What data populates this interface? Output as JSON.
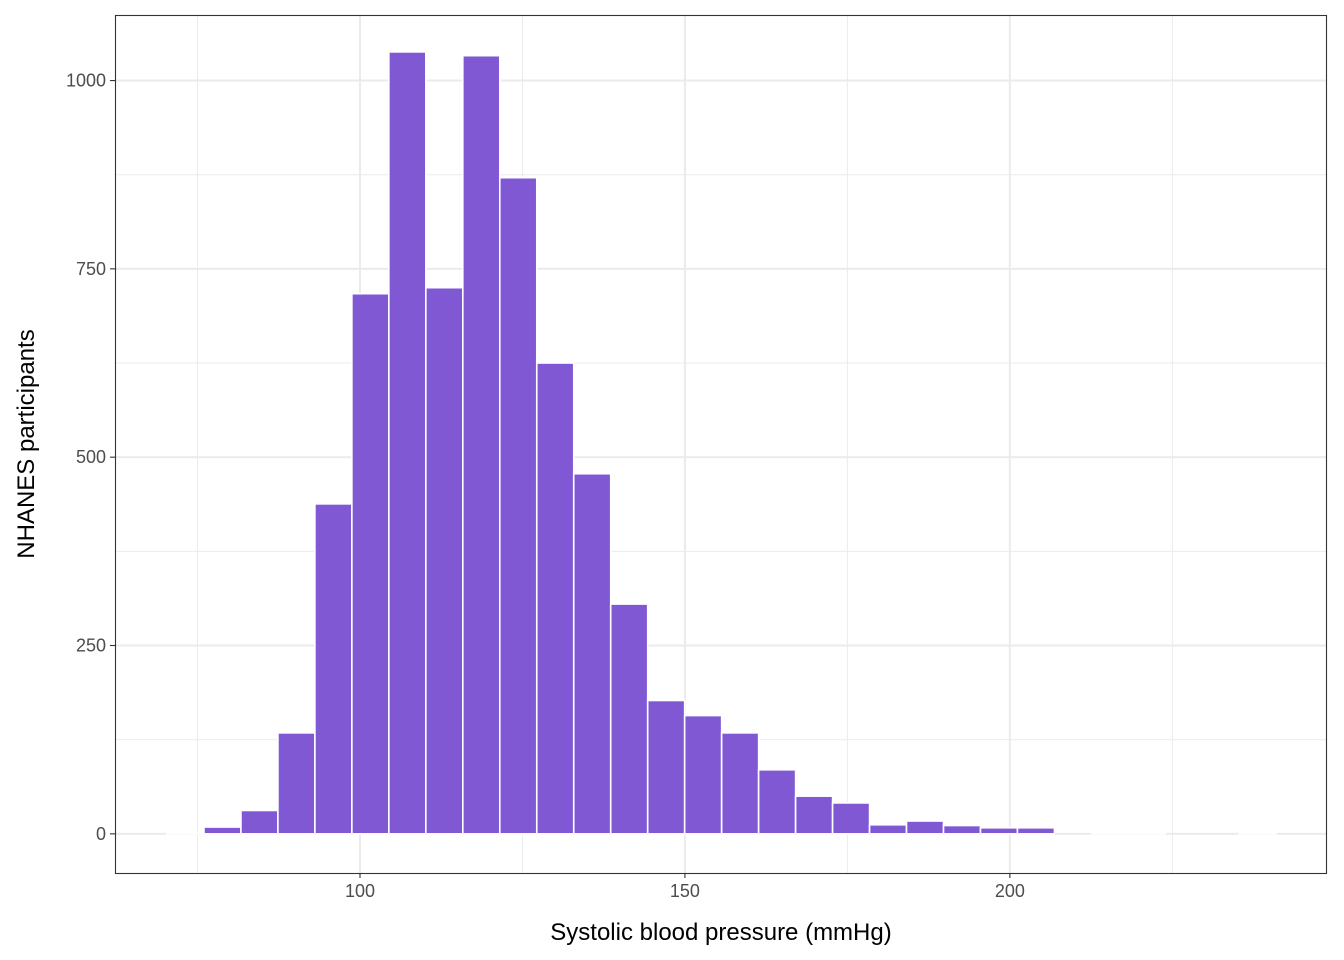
{
  "chart_data": {
    "type": "bar",
    "subtype": "histogram",
    "title": "",
    "xlabel": "Systolic blood pressure (mmHg)",
    "ylabel": "NHANES participants",
    "bin_start": 70.3,
    "bin_width": 5.69,
    "values": [
      1,
      9,
      31,
      134,
      438,
      717,
      1038,
      725,
      1033,
      871,
      625,
      478,
      305,
      177,
      157,
      134,
      85,
      50,
      41,
      12,
      17,
      11,
      8,
      8,
      0,
      1,
      1,
      0,
      0,
      2
    ],
    "xlim": [
      62.3,
      248.8
    ],
    "ylim": [
      -52,
      1087
    ],
    "xticks": [
      "100",
      "150",
      "200"
    ],
    "yticks": [
      "0",
      "250",
      "500",
      "750",
      "1000"
    ],
    "grid": true,
    "bar_color": "#8058d4",
    "bar_outline": "#ffffff",
    "theme": "bw"
  }
}
